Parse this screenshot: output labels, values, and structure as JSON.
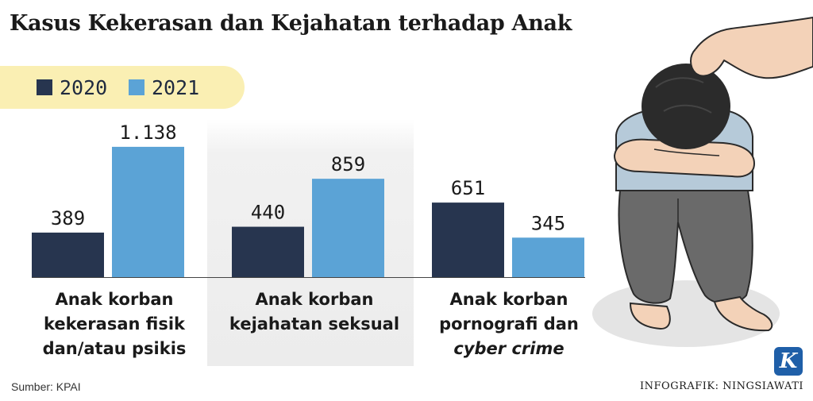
{
  "title": "Kasus Kekerasan dan Kejahatan terhadap Anak",
  "colors": {
    "series_2020": "#27354f",
    "series_2021": "#5ba3d6",
    "legend_bg": "#faefb3"
  },
  "chart_data": {
    "type": "bar",
    "title": "Kasus Kekerasan dan Kejahatan terhadap Anak",
    "categories": [
      "Anak korban kekerasan fisik dan/atau psikis",
      "Anak korban kejahatan seksual",
      "Anak korban pornografi dan cyber crime"
    ],
    "series": [
      {
        "name": "2020",
        "values": [
          389,
          440,
          651
        ],
        "labels": [
          "389",
          "440",
          "651"
        ]
      },
      {
        "name": "2021",
        "values": [
          1138,
          859,
          345
        ],
        "labels": [
          "1.138",
          "859",
          "345"
        ]
      }
    ],
    "ylim": [
      0,
      1380
    ],
    "grid": false,
    "legend": "top-left"
  },
  "category_labels": [
    {
      "line1": "Anak korban",
      "line2": "kekerasan fisik",
      "line3": "dan/atau psikis"
    },
    {
      "line1": "Anak korban",
      "line2": "kejahatan seksual",
      "line3": ""
    },
    {
      "line1": "Anak korban",
      "line2": "pornografi dan",
      "line3": "cyber crime"
    }
  ],
  "source": "Sumber: KPAI",
  "credit": "INFOGRAFIK: NINGSIAWATI",
  "logo_letter": "K",
  "illustration_icon": "child-abuse-illustration",
  "logo_icon": "kompas-logo-icon"
}
